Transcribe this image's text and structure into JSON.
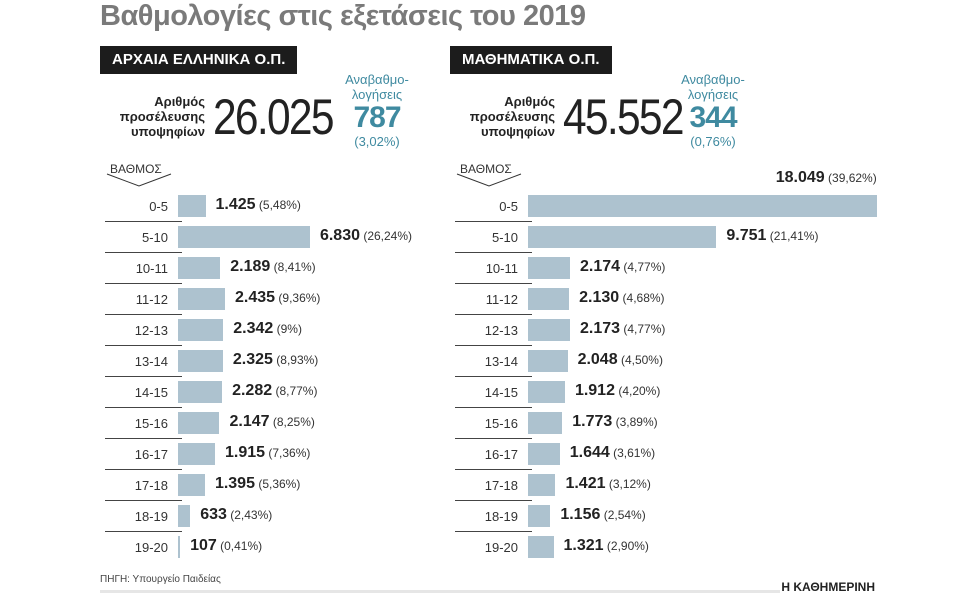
{
  "title": "Βαθμολογίες στις εξετάσεις του 2019",
  "source": "ΠΗΓΗ: Υπουργείο Παιδείας",
  "brand": "Η ΚΑΘΗΜΕΡΙΝΗ",
  "bar_color": "#adc2cf",
  "accent_color": "#3f8aa0",
  "candidates_label": "Αριθμός προσέλευσης υποψηφίων",
  "regrade_label": "Αναβαθμο-λογήσεις",
  "grade_label": "ΒΑΘΜΟΣ",
  "chart_data": [
    {
      "type": "bar",
      "orientation": "horizontal",
      "title": "ΑΡΧΑΙΑ ΕΛΛΗΝΙΚΑ Ο.Π.",
      "candidates": "26.025",
      "regrades": "787",
      "regrades_pct": "(3,02%)",
      "categories": [
        "0-5",
        "5-10",
        "10-11",
        "11-12",
        "12-13",
        "13-14",
        "14-15",
        "15-16",
        "16-17",
        "17-18",
        "18-19",
        "19-20"
      ],
      "values": [
        1425,
        6830,
        2189,
        2435,
        2342,
        2325,
        2282,
        2147,
        1915,
        1395,
        633,
        107
      ],
      "value_labels": [
        "1.425",
        "6.830",
        "2.189",
        "2.435",
        "2.342",
        "2.325",
        "2.282",
        "2.147",
        "1.915",
        "1.395",
        "633",
        "107"
      ],
      "pct_labels": [
        "(5,48%)",
        "(26,24%)",
        "(8,41%)",
        "(9,36%)",
        "(9%)",
        "(8,93%)",
        "(8,77%)",
        "(8,25%)",
        "(7,36%)",
        "(5,36%)",
        "(2,43%)",
        "(0,41%)"
      ]
    },
    {
      "type": "bar",
      "orientation": "horizontal",
      "title": "ΜΑΘΗΜΑΤΙΚΑ Ο.Π.",
      "candidates": "45.552",
      "regrades": "344",
      "regrades_pct": "(0,76%)",
      "categories": [
        "0-5",
        "5-10",
        "10-11",
        "11-12",
        "12-13",
        "13-14",
        "14-15",
        "15-16",
        "16-17",
        "17-18",
        "18-19",
        "19-20"
      ],
      "values": [
        18049,
        9751,
        2174,
        2130,
        2173,
        2048,
        1912,
        1773,
        1644,
        1421,
        1156,
        1321
      ],
      "value_labels": [
        "18.049",
        "9.751",
        "2.174",
        "2.130",
        "2.173",
        "2.048",
        "1.912",
        "1.773",
        "1.644",
        "1.421",
        "1.156",
        "1.321"
      ],
      "pct_labels": [
        "(39,62%)",
        "(21,41%)",
        "(4,77%)",
        "(4,68%)",
        "(4,77%)",
        "(4,50%)",
        "(4,20%)",
        "(3,89%)",
        "(3,61%)",
        "(3,12%)",
        "(2,54%)",
        "(2,90%)"
      ]
    }
  ]
}
